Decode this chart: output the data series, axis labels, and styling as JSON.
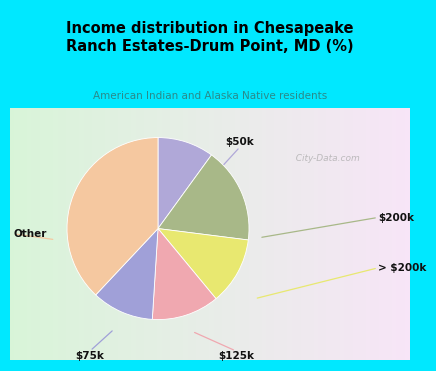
{
  "title": "Income distribution in Chesapeake\nRanch Estates-Drum Point, MD (%)",
  "subtitle": "American Indian and Alaska Native residents",
  "labels": [
    "$50k",
    "$200k",
    "> $200k",
    "$125k",
    "$75k",
    "Other"
  ],
  "values": [
    10,
    17,
    12,
    12,
    11,
    38
  ],
  "colors": [
    "#b0a8d8",
    "#a8b888",
    "#e8e870",
    "#f0a8b0",
    "#a0a0d8",
    "#f5c8a0"
  ],
  "bg_top": "#00e8ff",
  "bg_chart_colors": [
    "#c8e8d0",
    "#e8f5ec",
    "#ddf5f5",
    "#cceeff"
  ],
  "title_color": "#000000",
  "subtitle_color": "#2a8a8a",
  "startangle": 90,
  "watermark": "  City-Data.com"
}
